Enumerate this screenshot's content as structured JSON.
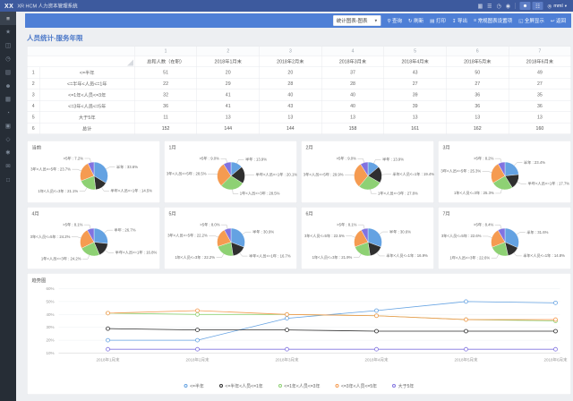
{
  "app": {
    "logo": "XX",
    "title": "XR HCM 人力资本管理系统",
    "topbar_icons": [
      {
        "name": "calendar-icon",
        "glyph": "▦"
      },
      {
        "name": "apps-icon",
        "glyph": "☰"
      },
      {
        "name": "history-icon",
        "glyph": "◷"
      },
      {
        "name": "help-icon",
        "glyph": "◉"
      }
    ],
    "user_buttons": [
      {
        "name": "profile-button",
        "glyph": "☻"
      },
      {
        "name": "org-button",
        "glyph": "☷"
      }
    ],
    "user": {
      "glyph": "◎",
      "label": "mml",
      "caret": "▾"
    }
  },
  "sidebar": {
    "items": [
      {
        "name": "menu-icon",
        "glyph": "≡",
        "active": true
      },
      {
        "name": "favorite-icon",
        "glyph": "★",
        "active": false
      },
      {
        "name": "mail-icon",
        "glyph": "◫",
        "active": false
      },
      {
        "name": "clock-icon",
        "glyph": "◷",
        "active": false
      },
      {
        "name": "report-icon",
        "glyph": "▤",
        "active": false
      },
      {
        "name": "user-icon",
        "glyph": "☻",
        "active": false
      },
      {
        "name": "grid-icon",
        "glyph": "▦",
        "active": false
      },
      {
        "name": "pie-icon",
        "glyph": "◔",
        "active": false
      },
      {
        "name": "table-icon",
        "glyph": "▣",
        "active": false
      },
      {
        "name": "module-icon",
        "glyph": "◇",
        "active": false
      },
      {
        "name": "star-icon",
        "glyph": "✱",
        "active": false
      },
      {
        "name": "message-icon",
        "glyph": "✉",
        "active": false
      },
      {
        "name": "window-icon",
        "glyph": "□",
        "active": false
      }
    ]
  },
  "toolbar": {
    "select_value": "统计图表-图表",
    "select_caret": "▼",
    "items": [
      {
        "name": "query-button",
        "glyph": "⚲",
        "label": "查询"
      },
      {
        "name": "refresh-button",
        "glyph": "↻",
        "label": "刷新"
      },
      {
        "name": "print-button",
        "glyph": "▤",
        "label": "打印"
      },
      {
        "name": "export-button",
        "glyph": "↧",
        "label": "导出"
      },
      {
        "name": "chart-settings-button",
        "glyph": "≡",
        "label": "常规图表设置项"
      },
      {
        "name": "fullscreen-button",
        "glyph": "◱",
        "label": "全屏显示"
      },
      {
        "name": "back-button",
        "glyph": "↩",
        "label": "返回"
      }
    ]
  },
  "page": {
    "title": "人员统计-服务年限"
  },
  "categories": [
    {
      "label": "<=半年",
      "pie_label": "半年",
      "color": "#64a2e2"
    },
    {
      "label": "<=半年<人员<=1年",
      "pie_label": "半年<人员<=1年",
      "color": "#2f2f2f"
    },
    {
      "label": "<=1年<人员<=3年",
      "pie_label": "1年<人员<=3年",
      "color": "#8ed174"
    },
    {
      "label": "<=3年<人员<=5年",
      "pie_label": "3年<人员<=5年",
      "color": "#f59b51"
    },
    {
      "label": "大于5年",
      "pie_label": ">5年",
      "color": "#8173e0"
    }
  ],
  "table": {
    "col_numbers": [
      "1",
      "2",
      "3",
      "4",
      "5",
      "6",
      "7"
    ],
    "columns": [
      "总和人数（在职）",
      "2018年1月末",
      "2018年2月末",
      "2018年3月末",
      "2018年4月末",
      "2018年5月末",
      "2018年6月末"
    ],
    "rows": [
      {
        "num": "1",
        "label": "<=半年",
        "values": [
          51,
          20,
          20,
          37,
          43,
          50,
          49
        ],
        "is_total": false
      },
      {
        "num": "2",
        "label": "<=半年<人员<=1年",
        "values": [
          22,
          29,
          28,
          28,
          27,
          27,
          27
        ],
        "is_total": false
      },
      {
        "num": "3",
        "label": "<=1年<人员<=3年",
        "values": [
          32,
          41,
          40,
          40,
          39,
          36,
          35
        ],
        "is_total": false
      },
      {
        "num": "4",
        "label": "<=3年<人员<=5年",
        "values": [
          36,
          41,
          43,
          40,
          39,
          36,
          36
        ],
        "is_total": false
      },
      {
        "num": "5",
        "label": "大于5年",
        "values": [
          11,
          13,
          13,
          13,
          13,
          13,
          13
        ],
        "is_total": false
      },
      {
        "num": "6",
        "label": "总计",
        "values": [
          152,
          144,
          144,
          158,
          161,
          162,
          160
        ],
        "is_total": true
      }
    ]
  },
  "chart_data": [
    {
      "type": "pie",
      "title": "当前",
      "labels": [
        "半年",
        "半年<人员<=1年",
        "1年<人员<=3年",
        "3年<人员<=5年",
        ">5年"
      ],
      "values": [
        33.6,
        14.5,
        21.1,
        23.7,
        7.2
      ]
    },
    {
      "type": "pie",
      "title": "1月",
      "labels": [
        "半年",
        "半年<人员<=1年",
        "1年<人员<=3年",
        "3年<人员<=5年",
        ">5年"
      ],
      "values": [
        13.9,
        20.1,
        28.5,
        28.5,
        9.0
      ]
    },
    {
      "type": "pie",
      "title": "2月",
      "labels": [
        "半年",
        "半年<人员<=1年",
        "1年<人员<=3年",
        "3年<人员<=5年",
        ">5年"
      ],
      "values": [
        13.9,
        19.4,
        27.8,
        29.9,
        9.0
      ]
    },
    {
      "type": "pie",
      "title": "3月",
      "labels": [
        "半年",
        "半年<人员<=1年",
        "1年<人员<=3年",
        "3年<人员<=5年",
        ">5年"
      ],
      "values": [
        23.4,
        17.7,
        25.3,
        25.3,
        8.2
      ]
    },
    {
      "type": "pie",
      "title": "4月",
      "labels": [
        "半年",
        "半年<人员<=1年",
        "1年<人员<=3年",
        "3年<人员<=5年",
        ">5年"
      ],
      "values": [
        26.7,
        16.8,
        24.2,
        24.2,
        8.1
      ]
    },
    {
      "type": "pie",
      "title": "5月",
      "labels": [
        "半年",
        "半年<人员<=1年",
        "1年<人员<=3年",
        "3年<人员<=5年",
        ">5年"
      ],
      "values": [
        30.9,
        16.7,
        22.2,
        22.2,
        8.0
      ]
    },
    {
      "type": "pie",
      "title": "6月",
      "labels": [
        "半年",
        "半年<人员<=1年",
        "1年<人员<=3年",
        "3年<人员<=5年",
        ">5年"
      ],
      "values": [
        30.6,
        16.9,
        21.9,
        22.5,
        8.1
      ]
    },
    {
      "type": "pie",
      "title": "7月",
      "labels": [
        "半年",
        "半年<人员<=1年",
        "1年<人员<=3年",
        "3年<人员<=5年",
        ">5年"
      ],
      "values": [
        31.6,
        14.8,
        22.6,
        22.6,
        8.4
      ]
    },
    {
      "type": "line",
      "title": "趋势图",
      "x": [
        "2018年1月末",
        "2018年2月末",
        "2018年3月末",
        "2018年4月末",
        "2018年5月末",
        "2018年6月末"
      ],
      "ylim": [
        10,
        60
      ],
      "y_ticks": [
        "60%",
        "50%",
        "40%",
        "30%",
        "20%",
        "10%"
      ],
      "grid": true,
      "legend_position": "bottom",
      "series": [
        {
          "name": "<=半年",
          "values": [
            20,
            20,
            37,
            43,
            50,
            49
          ]
        },
        {
          "name": "<=半年<人员<=1年",
          "values": [
            29,
            28,
            28,
            27,
            27,
            27
          ]
        },
        {
          "name": "<=1年<人员<=3年",
          "values": [
            41,
            40,
            40,
            39,
            36,
            35
          ]
        },
        {
          "name": "<=3年<人员<=5年",
          "values": [
            41,
            43,
            40,
            39,
            36,
            36
          ]
        },
        {
          "name": "大于5年",
          "values": [
            13,
            13,
            13,
            13,
            13,
            13
          ]
        }
      ]
    }
  ]
}
